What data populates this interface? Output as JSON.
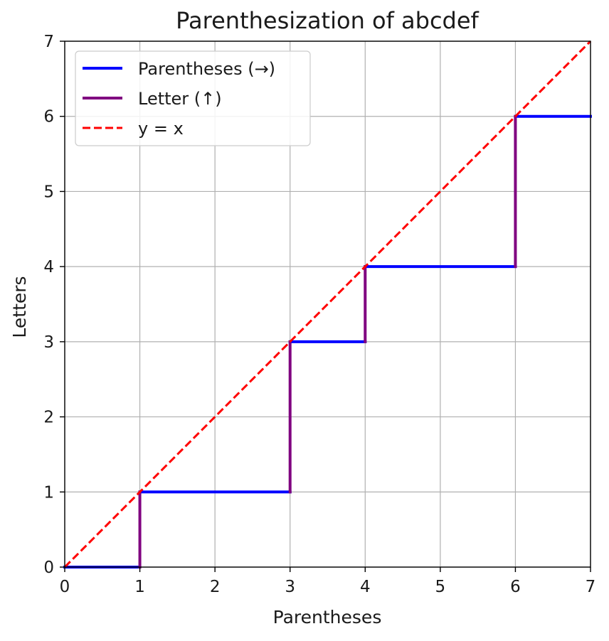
{
  "chart_data": {
    "type": "line",
    "title": "Parenthesization of abcdef",
    "xlabel": "Parentheses",
    "ylabel": "Letters",
    "xlim": [
      0,
      7
    ],
    "ylim": [
      0,
      7
    ],
    "xticks": [
      "0",
      "1",
      "2",
      "3",
      "4",
      "5",
      "6",
      "7"
    ],
    "yticks": [
      "0",
      "1",
      "2",
      "3",
      "4",
      "5",
      "6",
      "7"
    ],
    "grid": true,
    "legend_position": "top-left",
    "series": [
      {
        "name": "Parentheses  (→)",
        "style": "solid",
        "color": "#0000ff",
        "segments": [
          [
            [
              0,
              0
            ],
            [
              1,
              0
            ]
          ],
          [
            [
              1,
              1
            ],
            [
              3,
              1
            ]
          ],
          [
            [
              3,
              3
            ],
            [
              4,
              3
            ]
          ],
          [
            [
              4,
              4
            ],
            [
              6,
              4
            ]
          ],
          [
            [
              6,
              6
            ],
            [
              7,
              6
            ]
          ]
        ]
      },
      {
        "name": "Letter (↑)",
        "style": "solid",
        "color": "#800080",
        "segments": [
          [
            [
              1,
              0
            ],
            [
              1,
              1
            ]
          ],
          [
            [
              3,
              1
            ],
            [
              3,
              3
            ]
          ],
          [
            [
              4,
              3
            ],
            [
              4,
              4
            ]
          ],
          [
            [
              6,
              4
            ],
            [
              6,
              6
            ]
          ]
        ]
      },
      {
        "name": "y = x",
        "style": "dashed",
        "color": "#ff0000",
        "segments": [
          [
            [
              0,
              0
            ],
            [
              7,
              7
            ]
          ]
        ]
      }
    ]
  }
}
